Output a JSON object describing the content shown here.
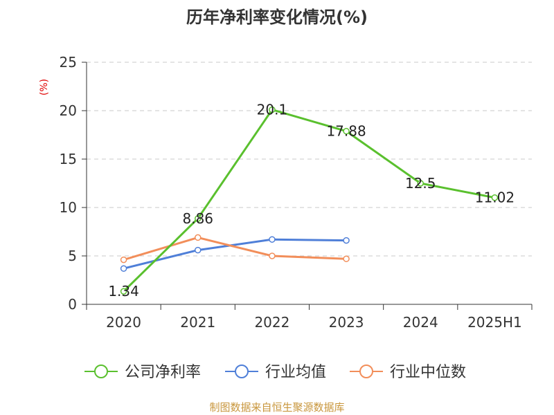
{
  "chart_data": {
    "type": "line",
    "title": "历年净利率变化情况(%)",
    "ylabel": "(%)",
    "categories": [
      "2020",
      "2021",
      "2022",
      "2023",
      "2024",
      "2025H1"
    ],
    "ylim": [
      0,
      25
    ],
    "yticks": [
      "0",
      "5",
      "10",
      "15",
      "20",
      "25"
    ],
    "grid": true,
    "legend_position": "bottom",
    "series": [
      {
        "name": "公司净利率",
        "color": "#5ac02e",
        "values": [
          1.34,
          8.86,
          20.1,
          17.88,
          12.5,
          11.02
        ],
        "labels": [
          "1.34",
          "8.86",
          "20.1",
          "17.88",
          "12.5",
          "11.02"
        ]
      },
      {
        "name": "行业均值",
        "color": "#4f7fd8",
        "values": [
          3.7,
          5.6,
          6.7,
          6.6,
          null,
          null
        ]
      },
      {
        "name": "行业中位数",
        "color": "#f28e5a",
        "values": [
          4.6,
          6.9,
          5.0,
          4.7,
          null,
          null
        ]
      }
    ]
  },
  "footer": {
    "source": "制图数据来自恒生聚源数据库"
  }
}
